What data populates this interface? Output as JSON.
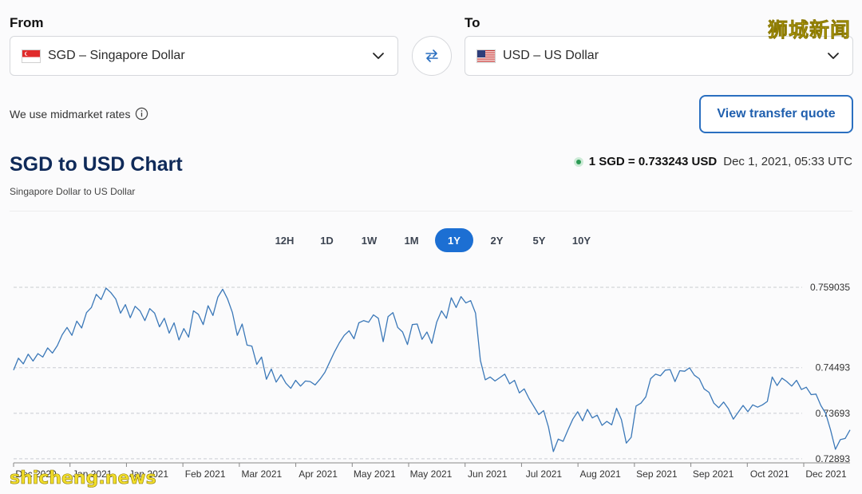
{
  "from": {
    "label": "From",
    "currency": "SGD – Singapore Dollar",
    "flag_icon": "singapore-flag-icon"
  },
  "to": {
    "label": "To",
    "currency": "USD – US Dollar",
    "flag_icon": "us-flag-icon"
  },
  "swap_icon": "swap-arrows-icon",
  "watermark_top": "狮城新闻",
  "watermark_bottom": "shicheng.news",
  "midmarket": {
    "text": "We use midmarket rates",
    "icon": "info-icon"
  },
  "quote_button": "View transfer quote",
  "chart_header": {
    "title": "SGD to USD Chart",
    "subtitle": "Singapore Dollar to US Dollar",
    "rate": "1 SGD = 0.733243 USD",
    "timestamp": "Dec 1, 2021, 05:33 UTC"
  },
  "ranges": [
    "12H",
    "1D",
    "1W",
    "1M",
    "1Y",
    "2Y",
    "5Y",
    "10Y"
  ],
  "active_range": "1Y",
  "colors": {
    "accent": "#1c6fd3",
    "line": "#3b78b8",
    "title": "#0f2a59",
    "live": "#2c9a55"
  },
  "chart_data": {
    "type": "line",
    "title": "",
    "xlabel": "",
    "ylabel": "",
    "grid": true,
    "x_ticks": [
      "Dec 2020",
      "Jan 2021",
      "Jan 2021",
      "Feb 2021",
      "Mar 2021",
      "Apr 2021",
      "May 2021",
      "May 2021",
      "Jun 2021",
      "Jul 2021",
      "Aug 2021",
      "Sep 2021",
      "Sep 2021",
      "Oct 2021",
      "Dec 2021"
    ],
    "y_ticks": [
      0.759035,
      0.74493,
      0.73693,
      0.72893
    ],
    "y_tick_labels": [
      "0.759035",
      "0.74493",
      "0.73693",
      "0.72893"
    ],
    "ylim": [
      0.7285,
      0.7596
    ],
    "series": [
      {
        "values": [
          0.7445,
          0.7466,
          0.7456,
          0.7473,
          0.7461,
          0.7474,
          0.7468,
          0.7484,
          0.7475,
          0.7488,
          0.7507,
          0.752,
          0.7506,
          0.7531,
          0.7519,
          0.7546,
          0.7555,
          0.7578,
          0.7569,
          0.7589,
          0.7581,
          0.757,
          0.7545,
          0.756,
          0.7537,
          0.7557,
          0.7549,
          0.7532,
          0.7553,
          0.7545,
          0.7521,
          0.7536,
          0.751,
          0.7528,
          0.7498,
          0.7518,
          0.7503,
          0.7549,
          0.7543,
          0.7525,
          0.7558,
          0.7541,
          0.7573,
          0.7587,
          0.757,
          0.7546,
          0.7506,
          0.7526,
          0.7489,
          0.7487,
          0.7455,
          0.7468,
          0.7429,
          0.7447,
          0.7424,
          0.7437,
          0.7422,
          0.7413,
          0.7427,
          0.7417,
          0.7426,
          0.7425,
          0.7419,
          0.7429,
          0.7441,
          0.7459,
          0.7477,
          0.7493,
          0.7506,
          0.7514,
          0.75,
          0.7528,
          0.7532,
          0.7529,
          0.7542,
          0.7536,
          0.7495,
          0.7539,
          0.7546,
          0.752,
          0.7512,
          0.749,
          0.7525,
          0.7526,
          0.7499,
          0.7512,
          0.7492,
          0.7529,
          0.7549,
          0.7536,
          0.7572,
          0.7555,
          0.7574,
          0.7563,
          0.7567,
          0.7545,
          0.7462,
          0.7428,
          0.7433,
          0.7426,
          0.7432,
          0.7438,
          0.7421,
          0.7427,
          0.7405,
          0.7412,
          0.7395,
          0.7381,
          0.7367,
          0.7374,
          0.7345,
          0.7302,
          0.7324,
          0.732,
          0.734,
          0.7359,
          0.7372,
          0.7356,
          0.7376,
          0.7361,
          0.7366,
          0.7348,
          0.7355,
          0.7349,
          0.7378,
          0.7358,
          0.7317,
          0.7327,
          0.7382,
          0.7387,
          0.7398,
          0.743,
          0.7438,
          0.7435,
          0.7445,
          0.7446,
          0.7425,
          0.7444,
          0.7443,
          0.7449,
          0.7436,
          0.743,
          0.7412,
          0.7406,
          0.7387,
          0.7379,
          0.7389,
          0.7377,
          0.7359,
          0.7371,
          0.7383,
          0.7372,
          0.7384,
          0.738,
          0.7384,
          0.739,
          0.7433,
          0.7418,
          0.7431,
          0.7425,
          0.7417,
          0.7427,
          0.7411,
          0.7415,
          0.7402,
          0.7403,
          0.7383,
          0.7369,
          0.734,
          0.7306,
          0.7323,
          0.7325,
          0.734
        ]
      }
    ]
  }
}
